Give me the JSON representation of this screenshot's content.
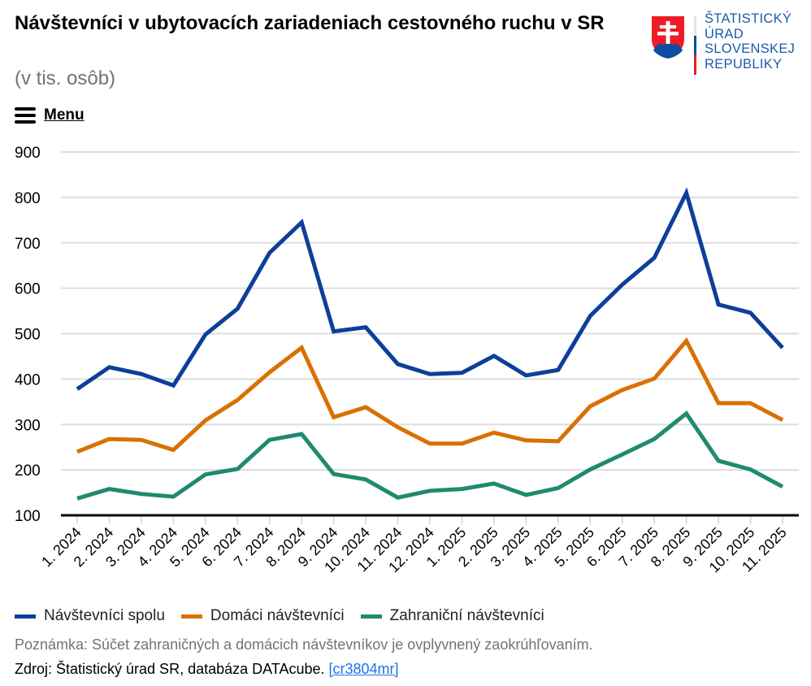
{
  "header": {
    "title": "Návštevníci v ubytovacích zariadeniach cestovného ruchu v SR",
    "subtitle": "(v tis. osôb)",
    "menu_label": "Menu",
    "menu_icon": "hamburger-icon"
  },
  "logo": {
    "lines": [
      "ŠTATISTICKÝ",
      "ÚRAD",
      "SLOVENSKEJ",
      "REPUBLIKY"
    ],
    "emblem": "slovak-coat-of-arms-icon",
    "colors": {
      "text": "#1d5aa8",
      "red": "#ee1c25",
      "blue": "#0b4ea2",
      "white": "#ffffff"
    }
  },
  "chart_data": {
    "type": "line",
    "title": "Návštevníci v ubytovacích zariadeniach cestovného ruchu v SR",
    "subtitle": "(v tis. osôb)",
    "xlabel": "",
    "ylabel": "",
    "ylim": [
      100,
      900
    ],
    "yticks": [
      900,
      800,
      700,
      600,
      500,
      400,
      300,
      200,
      100
    ],
    "grid": true,
    "legend_position": "bottom-left",
    "categories": [
      "1. 2024",
      "2. 2024",
      "3. 2024",
      "4. 2024",
      "5. 2024",
      "6. 2024",
      "7. 2024",
      "8. 2024",
      "9. 2024",
      "10. 2024",
      "11. 2024",
      "12. 2024",
      "1. 2025",
      "2. 2025",
      "3. 2025",
      "4. 2025",
      "5. 2025",
      "6. 2025",
      "7. 2025",
      "8. 2025",
      "9. 2025",
      "10. 2025",
      "11. 2025"
    ],
    "series": [
      {
        "name": "Návštevníci spolu",
        "color": "#0d3f9a",
        "values": [
          378,
          426,
          411,
          386,
          498,
          555,
          678,
          745,
          505,
          514,
          433,
          411,
          414,
          451,
          408,
          420,
          539,
          608,
          667,
          810,
          564,
          546,
          469
        ]
      },
      {
        "name": "Domáci návštevníci",
        "color": "#d97000",
        "values": [
          240,
          268,
          266,
          244,
          309,
          354,
          415,
          469,
          316,
          338,
          294,
          258,
          258,
          282,
          265,
          263,
          340,
          376,
          401,
          484,
          347,
          347,
          310
        ]
      },
      {
        "name": "Zahraniční návštevníci",
        "color": "#1f8a70",
        "values": [
          137,
          158,
          147,
          141,
          190,
          202,
          266,
          279,
          191,
          179,
          139,
          154,
          158,
          170,
          145,
          160,
          201,
          234,
          268,
          324,
          220,
          201,
          163
        ]
      }
    ]
  },
  "footer": {
    "note": "Poznámka: Súčet zahraničných a domácich návštevníkov je ovplyvnený zaokrúhľovaním.",
    "source_prefix": "Zdroj: Štatistický úrad SR, databáza DATAcube. ",
    "source_link": "[cr3804mr]"
  }
}
